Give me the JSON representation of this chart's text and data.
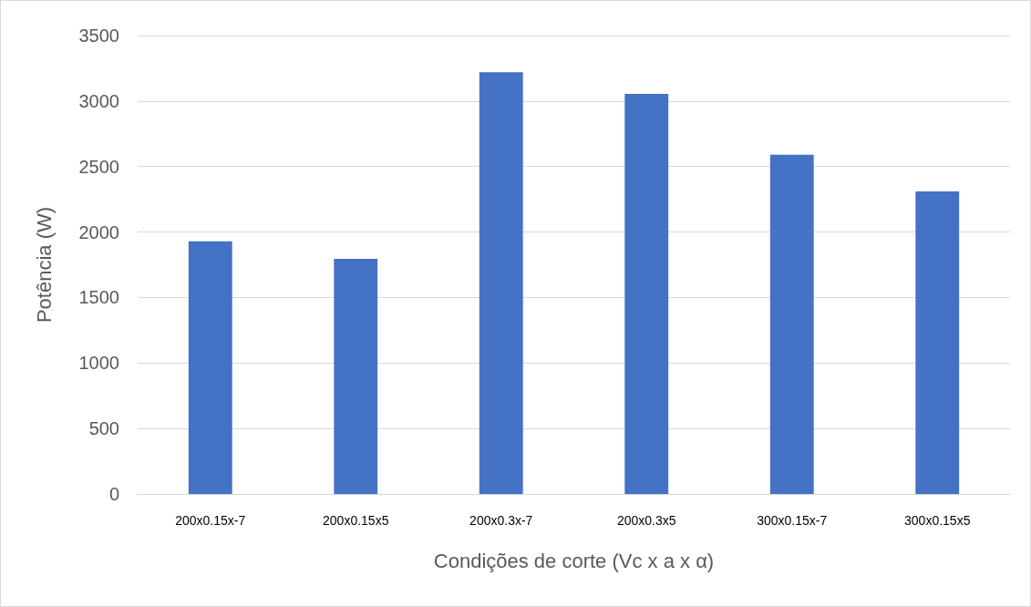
{
  "chart_data": {
    "type": "bar",
    "xlabel": "Condições de corte (Vc x a x α)",
    "ylabel": "Potência (W)",
    "categories": [
      "200x0.15x-7",
      "200x0.15x5",
      "200x0.3x-7",
      "200x0.3x5",
      "300x0.15x-7",
      "300x0.15x5"
    ],
    "values": [
      1930,
      1795,
      3220,
      3055,
      2590,
      2310
    ],
    "color": "#4472c4",
    "ylim": [
      0,
      3500
    ],
    "yticks": [
      0,
      500,
      1000,
      1500,
      2000,
      2500,
      3000,
      3500
    ],
    "grid": "y"
  }
}
